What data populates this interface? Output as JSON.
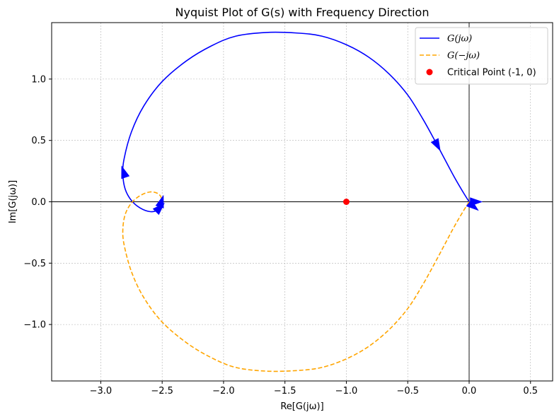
{
  "chart_data": {
    "type": "line",
    "title": "Nyquist Plot of G(s) with Frequency Direction",
    "xlabel": "Re[G(jω)]",
    "ylabel": "Im[G(jω)]",
    "xlim": [
      -3.4,
      0.68
    ],
    "ylim": [
      -1.46,
      1.46
    ],
    "xticks": [
      -3.0,
      -2.5,
      -2.0,
      -1.5,
      -1.0,
      -0.5,
      0.0,
      0.5
    ],
    "xtick_labels": [
      "−3.0",
      "−2.5",
      "−2.0",
      "−1.5",
      "−1.0",
      "−0.5",
      "0.0",
      "0.5"
    ],
    "yticks": [
      -1.0,
      -0.5,
      0.0,
      0.5,
      1.0
    ],
    "ytick_labels": [
      "−1.0",
      "−0.5",
      "0.0",
      "0.5",
      "1.0"
    ],
    "grid": true,
    "legend_position": "top-right",
    "reference_lines": {
      "x": 0,
      "y": 0
    },
    "series": [
      {
        "name": "G(jω)",
        "style": "solid",
        "color": "#0000ff",
        "points": [
          [
            0.0,
            0.0
          ],
          [
            -0.05,
            0.08
          ],
          [
            -0.12,
            0.2
          ],
          [
            -0.2,
            0.35
          ],
          [
            -0.28,
            0.5
          ],
          [
            -0.38,
            0.68
          ],
          [
            -0.5,
            0.87
          ],
          [
            -0.65,
            1.04
          ],
          [
            -0.82,
            1.18
          ],
          [
            -1.0,
            1.28
          ],
          [
            -1.2,
            1.35
          ],
          [
            -1.4,
            1.375
          ],
          [
            -1.65,
            1.38
          ],
          [
            -1.9,
            1.35
          ],
          [
            -2.1,
            1.27
          ],
          [
            -2.3,
            1.15
          ],
          [
            -2.5,
            0.98
          ],
          [
            -2.65,
            0.78
          ],
          [
            -2.75,
            0.57
          ],
          [
            -2.81,
            0.35
          ],
          [
            -2.82,
            0.22
          ],
          [
            -2.8,
            0.1
          ],
          [
            -2.75,
            0.01
          ],
          [
            -2.68,
            -0.05
          ],
          [
            -2.6,
            -0.08
          ],
          [
            -2.54,
            -0.07
          ],
          [
            -2.51,
            -0.04
          ],
          [
            -2.51,
            -0.01
          ]
        ]
      },
      {
        "name": "G(−jω)",
        "style": "dashed",
        "color": "#ffa500",
        "points": [
          [
            0.0,
            0.0
          ],
          [
            -0.05,
            -0.08
          ],
          [
            -0.12,
            -0.2
          ],
          [
            -0.2,
            -0.35
          ],
          [
            -0.28,
            -0.5
          ],
          [
            -0.38,
            -0.68
          ],
          [
            -0.5,
            -0.87
          ],
          [
            -0.65,
            -1.04
          ],
          [
            -0.82,
            -1.18
          ],
          [
            -1.0,
            -1.28
          ],
          [
            -1.2,
            -1.35
          ],
          [
            -1.4,
            -1.375
          ],
          [
            -1.65,
            -1.38
          ],
          [
            -1.9,
            -1.35
          ],
          [
            -2.1,
            -1.27
          ],
          [
            -2.3,
            -1.15
          ],
          [
            -2.5,
            -0.98
          ],
          [
            -2.65,
            -0.78
          ],
          [
            -2.75,
            -0.57
          ],
          [
            -2.81,
            -0.35
          ],
          [
            -2.82,
            -0.22
          ],
          [
            -2.8,
            -0.1
          ],
          [
            -2.75,
            -0.01
          ],
          [
            -2.68,
            0.05
          ],
          [
            -2.6,
            0.08
          ],
          [
            -2.54,
            0.07
          ],
          [
            -2.51,
            0.04
          ],
          [
            -2.51,
            0.01
          ]
        ]
      },
      {
        "name": "Critical Point (-1, 0)",
        "style": "marker",
        "color": "#ff0000",
        "points": [
          [
            -1.0,
            0.0
          ]
        ]
      }
    ],
    "direction_arrows": [
      {
        "at": [
          -0.28,
          0.5
        ],
        "toward": [
          -0.2,
          0.35
        ]
      },
      {
        "at": [
          -2.8,
          0.2
        ],
        "toward": [
          -2.82,
          0.26
        ]
      },
      {
        "at": [
          -2.55,
          -0.08
        ],
        "toward": [
          -2.51,
          -0.04
        ]
      },
      {
        "at": [
          -2.52,
          -0.04
        ],
        "toward": [
          -2.51,
          -0.01
        ]
      },
      {
        "at": [
          0.01,
          0.0
        ],
        "toward": [
          0.1,
          0.0
        ]
      },
      {
        "at": [
          0.0,
          -0.01
        ],
        "toward": [
          0.05,
          -0.05
        ]
      }
    ],
    "legend": [
      {
        "label": "G(jω)",
        "style": "solid",
        "color": "#0000ff"
      },
      {
        "label": "G(−jω)",
        "style": "dashed",
        "color": "#ffa500"
      },
      {
        "label": "Critical Point (-1, 0)",
        "style": "marker",
        "color": "#ff0000"
      }
    ]
  }
}
